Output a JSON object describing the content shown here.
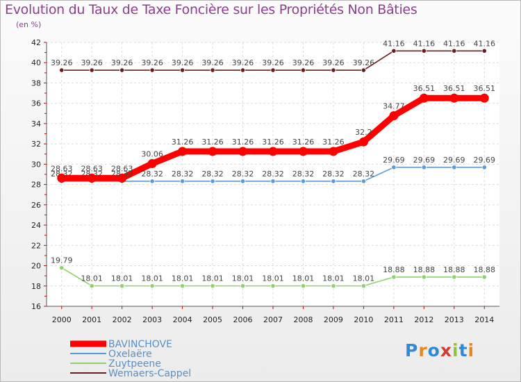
{
  "page": {
    "title": "Evolution du Taux de Taxe Foncière sur les Propriétés Non Bâties",
    "unit": "(en %)",
    "logo": "Proxiti"
  },
  "chart_data": {
    "type": "line",
    "title": "Evolution du Taux de Taxe Foncière sur les Propriétés Non Bâties",
    "ylabel": "(en %)",
    "xlabel": "",
    "x": [
      "2000",
      "2001",
      "2002",
      "2003",
      "2004",
      "2005",
      "2006",
      "2007",
      "2008",
      "2009",
      "2010",
      "2011",
      "2012",
      "2013",
      "2014"
    ],
    "ylim": [
      16,
      42
    ],
    "yticks": [
      16,
      18,
      20,
      22,
      24,
      26,
      28,
      30,
      32,
      34,
      36,
      38,
      40,
      42
    ],
    "grid": "horizontal-and-vertical",
    "legend_position": "bottom-left",
    "series": [
      {
        "name": "Wemaers-Cappel",
        "color": "#6b1d1d",
        "values": [
          39.26,
          39.26,
          39.26,
          39.26,
          39.26,
          39.26,
          39.26,
          39.26,
          39.26,
          39.26,
          39.26,
          41.16,
          41.16,
          41.16,
          41.16
        ],
        "labels": [
          "39.26",
          "39.26",
          "39.26",
          "39.26",
          "39.26",
          "39.26",
          "39.26",
          "39.26",
          "39.26",
          "39.26",
          "39.26",
          "41.16",
          "41.16",
          "41.16",
          "41.16"
        ]
      },
      {
        "name": "Zuytpeene",
        "color": "#8fd16a",
        "values": [
          19.79,
          18.01,
          18.01,
          18.01,
          18.01,
          18.01,
          18.01,
          18.01,
          18.01,
          18.01,
          18.01,
          18.88,
          18.88,
          18.88,
          18.88
        ],
        "labels": [
          "19.79",
          "18.01",
          "18.01",
          "18.01",
          "18.01",
          "18.01",
          "18.01",
          "18.01",
          "18.01",
          "18.01",
          "18.01",
          "18.88",
          "18.88",
          "18.88",
          "18.88"
        ]
      },
      {
        "name": "Oxelaëre",
        "color": "#5a9ad6",
        "values": [
          28.32,
          28.32,
          28.32,
          28.32,
          28.32,
          28.32,
          28.32,
          28.32,
          28.32,
          28.32,
          28.32,
          29.69,
          29.69,
          29.69,
          29.69
        ],
        "labels": [
          "28.32",
          "28.32",
          "28.32",
          "28.32",
          "28.32",
          "28.32",
          "28.32",
          "28.32",
          "28.32",
          "28.32",
          "28.32",
          "29.69",
          "29.69",
          "29.69",
          "29.69"
        ]
      },
      {
        "name": "BAVINCHOVE",
        "color": "#ff0000",
        "values": [
          28.63,
          28.63,
          28.63,
          30.06,
          31.26,
          31.26,
          31.26,
          31.26,
          31.26,
          31.26,
          32.2,
          34.77,
          36.51,
          36.51,
          36.51
        ],
        "labels": [
          "28.63",
          "28.63",
          "28.63",
          "30.06",
          "31.26",
          "31.26",
          "31.26",
          "31.26",
          "31.26",
          "31.26",
          "32.2",
          "34.77",
          "36.51",
          "36.51",
          "36.51"
        ]
      }
    ],
    "legend": [
      {
        "name": "BAVINCHOVE",
        "color": "#ff0000"
      },
      {
        "name": "Oxelaëre",
        "color": "#5a9ad6"
      },
      {
        "name": "Zuytpeene",
        "color": "#8fd16a"
      },
      {
        "name": "Wemaers-Cappel",
        "color": "#6b1d1d"
      }
    ]
  }
}
